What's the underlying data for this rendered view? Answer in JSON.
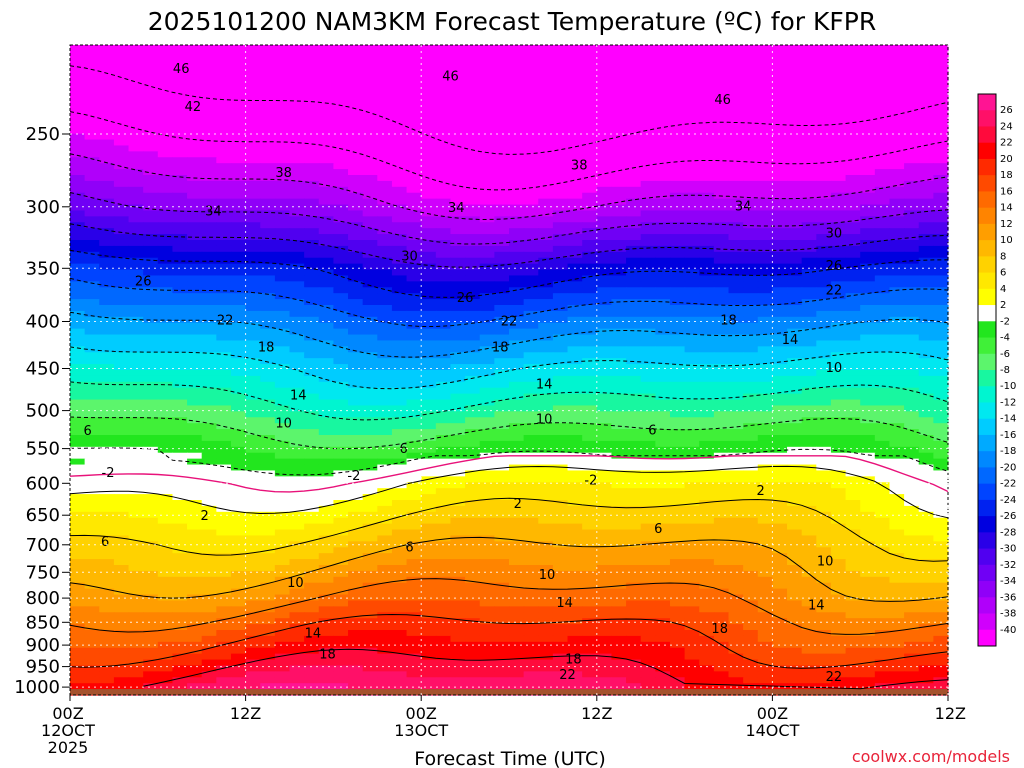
{
  "chart_data": {
    "type": "heatmap",
    "title": "2025101200 NAM3KM Forecast Temperature (ºC) for KFPR",
    "xlabel": "Forecast Time (UTC)",
    "ylabel": "",
    "credit": "coolwx.com/models",
    "x_ticks": [
      {
        "hour": 0,
        "lines": [
          "00Z",
          "12OCT",
          "2025"
        ]
      },
      {
        "hour": 12,
        "lines": [
          "12Z"
        ]
      },
      {
        "hour": 24,
        "lines": [
          "00Z",
          "13OCT"
        ]
      },
      {
        "hour": 36,
        "lines": [
          "12Z"
        ]
      },
      {
        "hour": 48,
        "lines": [
          "00Z",
          "14OCT"
        ]
      },
      {
        "hour": 60,
        "lines": [
          "12Z"
        ]
      }
    ],
    "xlim": [
      0,
      60
    ],
    "y_ticks": [
      250,
      300,
      350,
      400,
      450,
      500,
      550,
      600,
      650,
      700,
      750,
      800,
      850,
      900,
      950,
      1000
    ],
    "ylim_hPa": [
      1020,
      200
    ],
    "surface_hPa": 1005,
    "colorbar": {
      "labels": [
        26,
        24,
        22,
        20,
        18,
        16,
        14,
        12,
        10,
        8,
        6,
        4,
        2,
        -2,
        -4,
        -6,
        -8,
        -10,
        -12,
        -14,
        -16,
        -18,
        -20,
        -22,
        -24,
        -26,
        -28,
        -30,
        -32,
        -34,
        -36,
        -38,
        -40
      ],
      "colors": [
        "#ff1493",
        "#ff1068",
        "#ff0a3c",
        "#ff0000",
        "#ff2a00",
        "#ff4a00",
        "#ff6a00",
        "#ff8400",
        "#ff9e00",
        "#ffb800",
        "#ffd200",
        "#ffe800",
        "#ffff00",
        "#ffffff",
        "#22e61e",
        "#40f038",
        "#5cf56c",
        "#18f7a0",
        "#00f5d0",
        "#00e8f0",
        "#00ccff",
        "#00aaff",
        "#0088ff",
        "#0068ff",
        "#0044ff",
        "#0022f0",
        "#0000e0",
        "#2a00e8",
        "#5000f0",
        "#7000f5",
        "#9000f8",
        "#b000fa",
        "#d000fc",
        "#ff00ff"
      ]
    },
    "isotherm_profile": {
      "pressure_hPa": [
        200,
        250,
        300,
        350,
        400,
        450,
        500,
        550,
        600,
        650,
        700,
        750,
        800,
        850,
        900,
        950,
        1000,
        1020
      ],
      "temperature_C": [
        -52,
        -44,
        -36,
        -26,
        -19,
        -13,
        -8,
        -3,
        2,
        5,
        8,
        10.5,
        13,
        16,
        18.5,
        21,
        23.5,
        24.5
      ]
    },
    "contour_labels": [
      {
        "t": 46,
        "hour": 7.6,
        "p": 212
      },
      {
        "t": 46,
        "hour": 26.0,
        "p": 216
      },
      {
        "t": 46,
        "hour": 44.6,
        "p": 229
      },
      {
        "t": 42,
        "hour": 8.4,
        "p": 233
      },
      {
        "t": 38,
        "hour": 14.6,
        "p": 275
      },
      {
        "t": 38,
        "hour": 34.8,
        "p": 270
      },
      {
        "t": 34,
        "hour": 9.8,
        "p": 303
      },
      {
        "t": 34,
        "hour": 26.4,
        "p": 300
      },
      {
        "t": 34,
        "hour": 46.0,
        "p": 299
      },
      {
        "t": 30,
        "hour": 23.2,
        "p": 339
      },
      {
        "t": 30,
        "hour": 52.2,
        "p": 320
      },
      {
        "t": 26,
        "hour": 5.0,
        "p": 361
      },
      {
        "t": 26,
        "hour": 27.0,
        "p": 376
      },
      {
        "t": 26,
        "hour": 52.2,
        "p": 347
      },
      {
        "t": 22,
        "hour": 10.6,
        "p": 398
      },
      {
        "t": 22,
        "hour": 30.0,
        "p": 399
      },
      {
        "t": 22,
        "hour": 52.2,
        "p": 369
      },
      {
        "t": 18,
        "hour": 13.4,
        "p": 426
      },
      {
        "t": 18,
        "hour": 29.4,
        "p": 426
      },
      {
        "t": 18,
        "hour": 45.0,
        "p": 398
      },
      {
        "t": 14,
        "hour": 15.6,
        "p": 480
      },
      {
        "t": 14,
        "hour": 32.4,
        "p": 467
      },
      {
        "t": 14,
        "hour": 49.2,
        "p": 418
      },
      {
        "t": 10,
        "hour": 14.6,
        "p": 515
      },
      {
        "t": 10,
        "hour": 32.4,
        "p": 510
      },
      {
        "t": 10,
        "hour": 52.2,
        "p": 448
      },
      {
        "t": 6,
        "hour": 1.2,
        "p": 525
      },
      {
        "t": 6,
        "hour": 22.8,
        "p": 549
      },
      {
        "t": 6,
        "hour": 39.8,
        "p": 524
      },
      {
        "t": -2,
        "hour": 2.6,
        "p": 583
      },
      {
        "t": -2,
        "hour": 19.4,
        "p": 588
      },
      {
        "t": -2,
        "hour": 35.6,
        "p": 594
      },
      {
        "t": 2,
        "hour": 9.2,
        "p": 650
      },
      {
        "t": 2,
        "hour": 30.6,
        "p": 630
      },
      {
        "t": 2,
        "hour": 47.2,
        "p": 610
      },
      {
        "t": 6,
        "hour": 2.4,
        "p": 693
      },
      {
        "t": 6,
        "hour": 23.2,
        "p": 703
      },
      {
        "t": 6,
        "hour": 40.2,
        "p": 671
      },
      {
        "t": 10,
        "hour": 15.4,
        "p": 768
      },
      {
        "t": 10,
        "hour": 32.6,
        "p": 753
      },
      {
        "t": 10,
        "hour": 51.6,
        "p": 728
      },
      {
        "t": 14,
        "hour": 16.6,
        "p": 872
      },
      {
        "t": 14,
        "hour": 33.8,
        "p": 808
      },
      {
        "t": 14,
        "hour": 51.0,
        "p": 813
      },
      {
        "t": 18,
        "hour": 17.6,
        "p": 919
      },
      {
        "t": 18,
        "hour": 34.4,
        "p": 931
      },
      {
        "t": 18,
        "hour": 44.4,
        "p": 862
      },
      {
        "t": 22,
        "hour": 34.0,
        "p": 968
      },
      {
        "t": 22,
        "hour": 52.2,
        "p": 972
      }
    ]
  }
}
